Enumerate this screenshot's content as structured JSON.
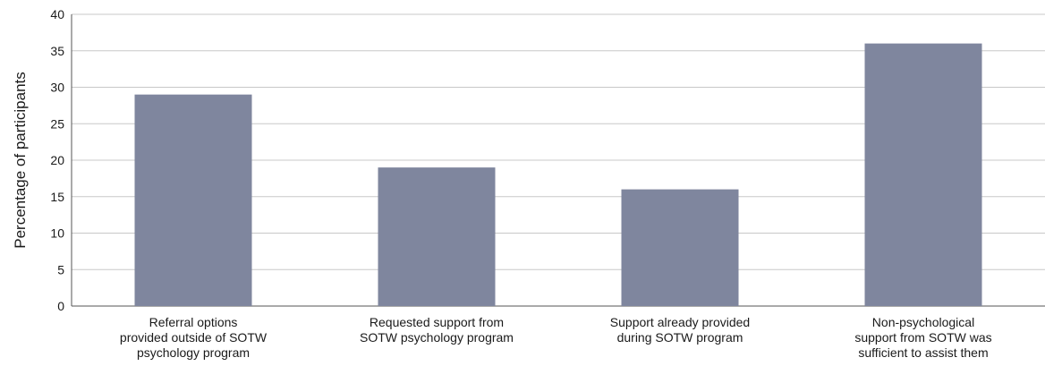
{
  "chart_data": {
    "type": "bar",
    "title": "",
    "xlabel": "",
    "ylabel": "Percentage of participants",
    "ylim": [
      0,
      40
    ],
    "yticks": [
      0,
      5,
      10,
      15,
      20,
      25,
      30,
      35,
      40
    ],
    "grid": true,
    "categories": [
      [
        "Referral options",
        "provided outside of SOTW",
        "psychology program"
      ],
      [
        "Requested support from",
        "SOTW psychology program"
      ],
      [
        "Support already provided",
        "during SOTW program"
      ],
      [
        "Non-psychological",
        "support from SOTW was",
        "sufficient to assist them"
      ]
    ],
    "values": [
      29,
      19,
      16,
      36
    ],
    "bar_color": "#7f869e"
  }
}
